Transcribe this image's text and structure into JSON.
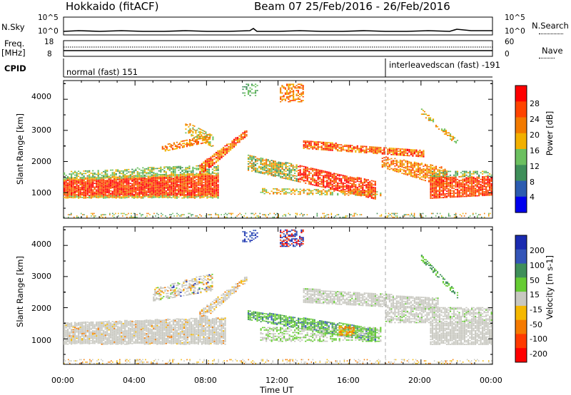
{
  "header": {
    "site": "Hokkaido (fitACF)",
    "beam_info": "Beam 07  25/Feb/2016 - 26/Feb/2016"
  },
  "side_labels": {
    "nsky": "N.Sky",
    "freq": "Freq.",
    "freq_unit": "[MHz]",
    "cpid": "CPID",
    "nsearch": "N.Search",
    "nave": "Nave"
  },
  "strip_ticks": {
    "nsky_left": [
      "10^5",
      "10^0"
    ],
    "nsky_right": [
      "10^5",
      "10^0"
    ],
    "freq_left": [
      "18",
      "8"
    ],
    "freq_right": [
      "60",
      "0"
    ]
  },
  "cpid_modes": [
    {
      "label": "normal (fast) 151",
      "start_hour": 0
    },
    {
      "label": "interleavedscan (fast) -191",
      "start_hour": 18
    }
  ],
  "chart_data": [
    {
      "type": "heatmap",
      "name": "power",
      "ylabel": "Slant Range [km]",
      "ylim": [
        180,
        4600
      ],
      "yticks": [
        1000,
        2000,
        3000,
        4000
      ],
      "xlim": [
        0,
        24
      ],
      "colorbar": {
        "label": "Power [dB]",
        "ticks": [
          "4",
          "8",
          "12",
          "16",
          "20",
          "24",
          "28"
        ],
        "colors": [
          "#0000ee",
          "#2c5cb0",
          "#3f8f5a",
          "#6cc060",
          "#f2b000",
          "#f27a00",
          "#ff4400",
          "#ff0000"
        ]
      }
    },
    {
      "type": "heatmap",
      "name": "velocity",
      "ylabel": "Slant Range [km]",
      "ylim": [
        180,
        4600
      ],
      "yticks": [
        1000,
        2000,
        3000,
        4000
      ],
      "xlim": [
        0,
        24
      ],
      "colorbar": {
        "label": "Velocity [m s-1]",
        "ticks": [
          "200",
          "100",
          "50",
          "15",
          "-15",
          "-50",
          "-100",
          "-200"
        ],
        "colors": [
          "#1a2bb0",
          "#3455b8",
          "#3f8f5a",
          "#66cc33",
          "#c8c8c0",
          "#f5b800",
          "#f57a00",
          "#ff3a00",
          "#ff0000"
        ]
      }
    }
  ],
  "xaxis": {
    "ticks": [
      "00:00",
      "04:00",
      "08:00",
      "12:00",
      "16:00",
      "20:00",
      "00:00"
    ],
    "label": "Time UT"
  },
  "colors": {
    "divider": "#aaaaaa",
    "ground_scatter": "#c8c8c0"
  }
}
